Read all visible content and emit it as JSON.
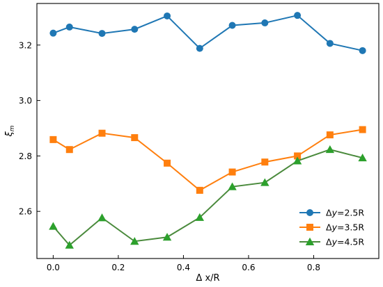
{
  "chart_data": {
    "type": "line",
    "xlabel": "Δ x/R",
    "ylabel": "ξm",
    "xlim": [
      -0.05,
      1.0
    ],
    "ylim": [
      2.43,
      3.35
    ],
    "xticks": [
      0.0,
      0.2,
      0.4,
      0.6,
      0.8
    ],
    "xtick_labels": [
      "0.0",
      "0.2",
      "0.4",
      "0.6",
      "0.8"
    ],
    "yticks": [
      2.6,
      2.8,
      3.0,
      3.2
    ],
    "ytick_labels": [
      "2.6",
      "2.8",
      "3.0",
      "3.2"
    ],
    "grid": false,
    "legend_position": "lower-right",
    "series": [
      {
        "name": "Δy=2.5R",
        "name_prefix": "Δ",
        "name_var": "y",
        "name_suffix": "=2.5R",
        "color": "#1f77b4",
        "marker": "circle",
        "x": [
          0.0,
          0.05,
          0.15,
          0.25,
          0.35,
          0.45,
          0.55,
          0.65,
          0.75,
          0.85,
          0.95
        ],
        "y": [
          3.243,
          3.265,
          3.242,
          3.257,
          3.305,
          3.188,
          3.271,
          3.28,
          3.307,
          3.206,
          3.18
        ]
      },
      {
        "name": "Δy=3.5R",
        "name_prefix": "Δ",
        "name_var": "y",
        "name_suffix": "=3.5R",
        "color": "#ff7f0e",
        "marker": "square",
        "x": [
          0.0,
          0.05,
          0.15,
          0.25,
          0.35,
          0.45,
          0.55,
          0.65,
          0.75,
          0.85,
          0.95
        ],
        "y": [
          2.859,
          2.823,
          2.882,
          2.866,
          2.774,
          2.676,
          2.742,
          2.778,
          2.8,
          2.876,
          2.895
        ]
      },
      {
        "name": "Δy=4.5R",
        "name_prefix": "Δ",
        "name_var": "y",
        "name_suffix": "=4.5R",
        "color": "#2ca02c",
        "line_color": "#4a8a3c",
        "marker": "triangle",
        "x": [
          0.0,
          0.05,
          0.15,
          0.25,
          0.35,
          0.45,
          0.55,
          0.65,
          0.75,
          0.85,
          0.95
        ],
        "y": [
          2.546,
          2.478,
          2.577,
          2.492,
          2.507,
          2.578,
          2.689,
          2.704,
          2.782,
          2.823,
          2.793
        ]
      }
    ]
  }
}
